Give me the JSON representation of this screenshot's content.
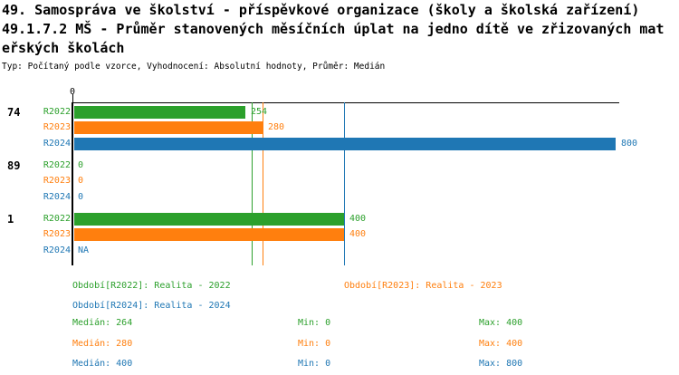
{
  "header": {
    "title_line1": "49. Samospráva ve školství - příspěvkové organizace (školy a školská zařízení)",
    "title_line2": "49.1.7.2 MŠ - Průměr stanovených měsíčních úplat na jedno dítě ve zřizovaných mat",
    "title_line3": "eřských školách",
    "subtitle": "Typ: Počítaný podle vzorce, Vyhodnocení: Absolutní hodnoty, Průměr: Medián"
  },
  "chart_data": {
    "type": "bar",
    "orientation": "horizontal",
    "title": "49.1.7.2 MŠ - Průměr stanovených měsíčních úplat na jedno dítě ve zřizovaných mateřských školách",
    "axis": {
      "tick_label": "0",
      "xlim": [
        0,
        800
      ],
      "grid": false
    },
    "series_colors": {
      "R2022": "#2ca02c",
      "R2023": "#ff7f0e",
      "R2024": "#1f77b4"
    },
    "groups": [
      {
        "label": "74",
        "bars": [
          {
            "series": "R2022",
            "value": 254,
            "display": "254"
          },
          {
            "series": "R2023",
            "value": 280,
            "display": "280"
          },
          {
            "series": "R2024",
            "value": 800,
            "display": "800"
          }
        ]
      },
      {
        "label": "89",
        "bars": [
          {
            "series": "R2022",
            "value": 0,
            "display": "0"
          },
          {
            "series": "R2023",
            "value": 0,
            "display": "0"
          },
          {
            "series": "R2024",
            "value": 0,
            "display": "0"
          }
        ]
      },
      {
        "label": "1",
        "bars": [
          {
            "series": "R2022",
            "value": 400,
            "display": "400"
          },
          {
            "series": "R2023",
            "value": 400,
            "display": "400"
          },
          {
            "series": "R2024",
            "value": null,
            "display": "NA"
          }
        ]
      }
    ],
    "median_lines": [
      {
        "series": "R2022",
        "value": 264
      },
      {
        "series": "R2023",
        "value": 280
      },
      {
        "series": "R2024",
        "value": 400
      }
    ],
    "legend": [
      {
        "series": "R2022",
        "label": "Období[R2022]: Realita - 2022"
      },
      {
        "series": "R2023",
        "label": "Období[R2023]: Realita - 2023"
      },
      {
        "series": "R2024",
        "label": "Období[R2024]: Realita - 2024"
      }
    ],
    "stats": [
      {
        "series": "R2022",
        "median": 264,
        "min": 0,
        "max": 400,
        "median_text": "Medián: 264",
        "min_text": "Min: 0",
        "max_text": "Max: 400"
      },
      {
        "series": "R2023",
        "median": 280,
        "min": 0,
        "max": 400,
        "median_text": "Medián: 280",
        "min_text": "Min: 0",
        "max_text": "Max: 400"
      },
      {
        "series": "R2024",
        "median": 400,
        "min": 0,
        "max": 800,
        "median_text": "Medián: 400",
        "min_text": "Min: 0",
        "max_text": "Max: 800"
      }
    ]
  }
}
